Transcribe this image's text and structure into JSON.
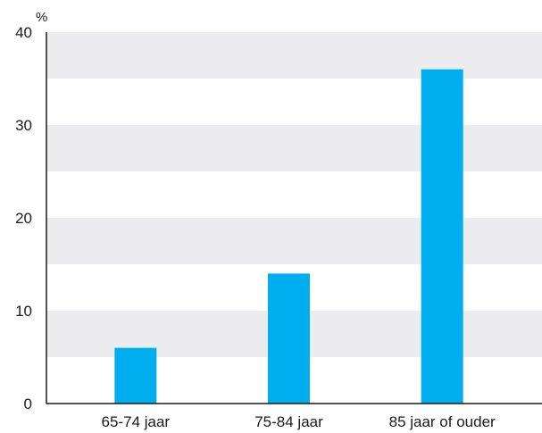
{
  "chart_data": {
    "type": "bar",
    "categories": [
      "65-74 jaar",
      "75-84 jaar",
      "85 jaar of ouder"
    ],
    "values": [
      6,
      14,
      36
    ],
    "title": "",
    "xlabel": "",
    "ylabel": "",
    "y_unit": "%",
    "ylim": [
      0,
      40
    ],
    "yticks": [
      0,
      10,
      20,
      30,
      40
    ],
    "grid": "alternating horizontal bands",
    "legend": "none",
    "colors": {
      "bar": "#00aeef",
      "band": "#ececee",
      "axis": "#1a1a1a"
    }
  }
}
